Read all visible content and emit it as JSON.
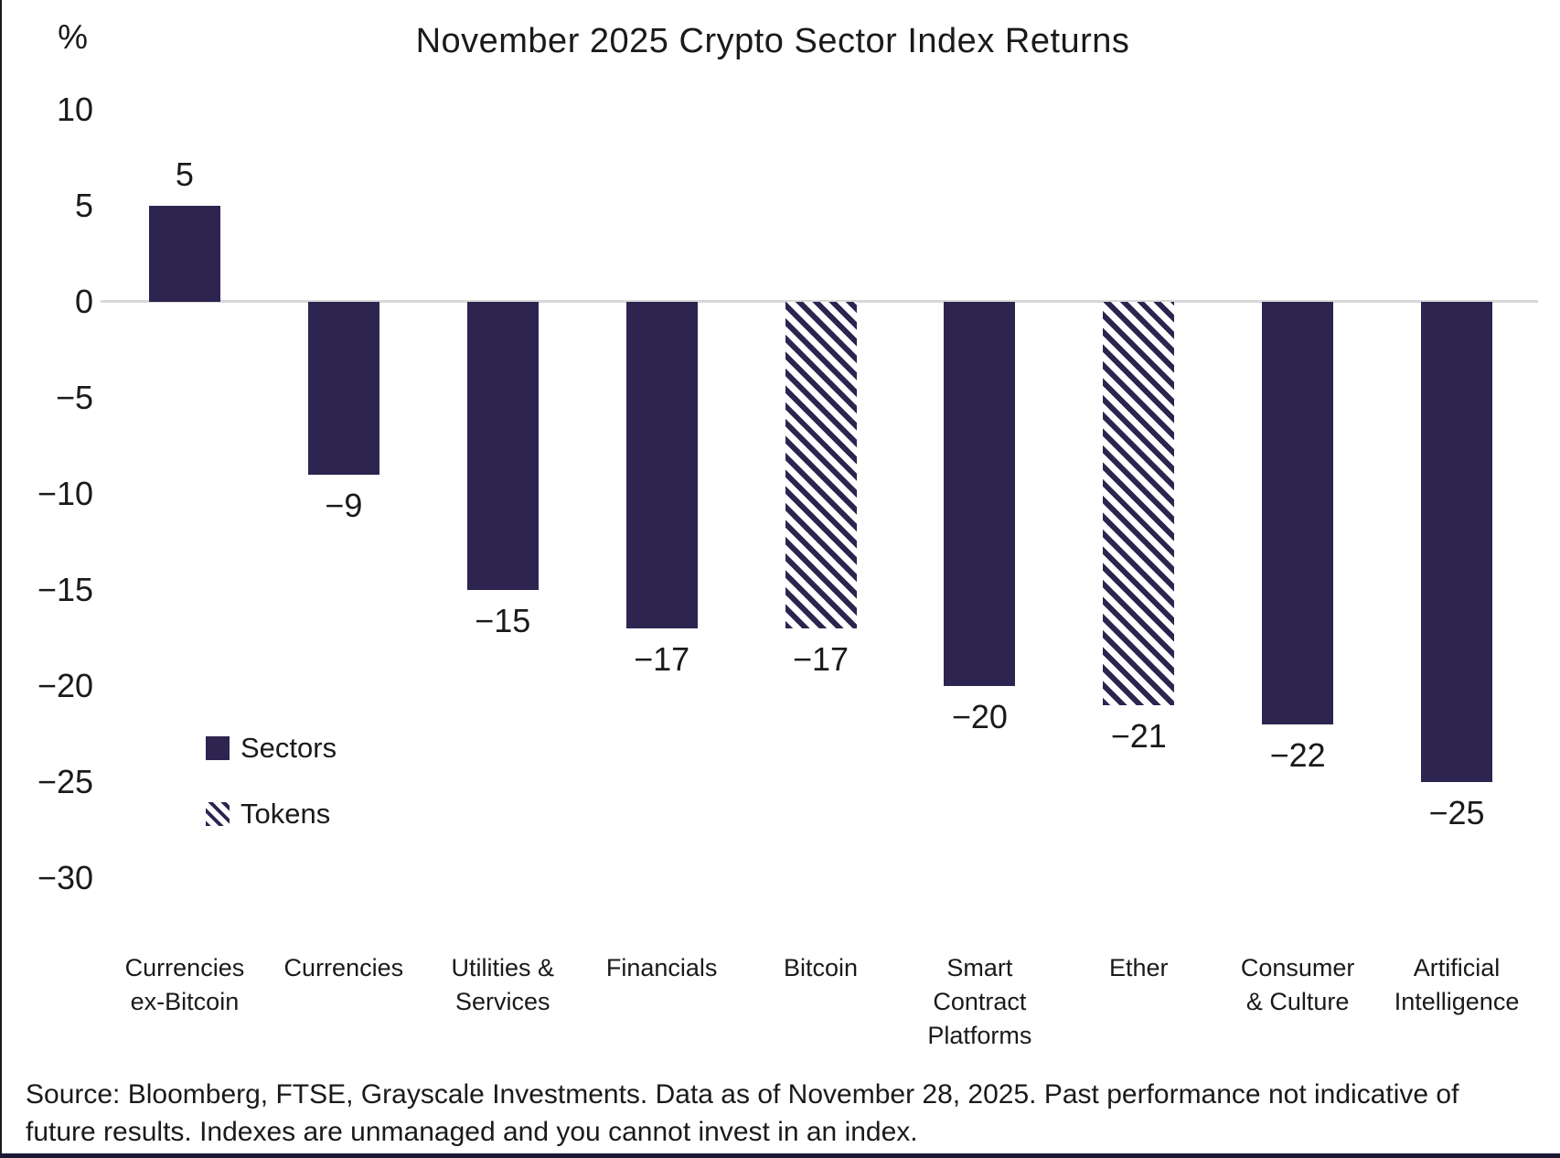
{
  "page": {
    "source_note": "Source: Bloomberg, FTSE, Grayscale Investments. Data as of November 28, 2025. Past performance not indicative of future results. Indexes are unmanaged and you cannot invest in an index."
  },
  "chart_data": {
    "type": "bar",
    "title": "November 2025 Crypto Sector Index Returns",
    "unit_label": "%",
    "categories": [
      "Currencies ex-Bitcoin",
      "Currencies",
      "Utilities & Services",
      "Financials",
      "Bitcoin",
      "Smart Contract Platforms",
      "Ether",
      "Consumer & Culture",
      "Artificial Intelligence"
    ],
    "category_lines": [
      [
        "Currencies",
        "ex-Bitcoin"
      ],
      [
        "Currencies"
      ],
      [
        "Utilities &",
        "Services"
      ],
      [
        "Financials"
      ],
      [
        "Bitcoin"
      ],
      [
        "Smart",
        "Contract",
        "Platforms"
      ],
      [
        "Ether"
      ],
      [
        "Consumer",
        "& Culture"
      ],
      [
        "Artificial",
        "Intelligence"
      ]
    ],
    "values": [
      5,
      -9,
      -15,
      -17,
      -17,
      -20,
      -21,
      -22,
      -25
    ],
    "value_labels": [
      "5",
      "−9",
      "−15",
      "−17",
      "−17",
      "−20",
      "−21",
      "−22",
      "−25"
    ],
    "bar_styles": [
      "solid",
      "solid",
      "solid",
      "solid",
      "hatched",
      "solid",
      "hatched",
      "solid",
      "solid"
    ],
    "y_ticks": [
      10,
      5,
      0,
      -5,
      -10,
      -15,
      -20,
      -25,
      -30
    ],
    "y_tick_labels": [
      "10",
      "5",
      "0",
      "−5",
      "−10",
      "−15",
      "−20",
      "−25",
      "−30"
    ],
    "ylim": [
      -30,
      10
    ],
    "grid": "zero-line-only",
    "legend_position": "inside-left",
    "legend": [
      {
        "label": "Sectors",
        "swatch": "solid"
      },
      {
        "label": "Tokens",
        "swatch": "hatched"
      }
    ],
    "colors": {
      "bar": "#2E2450",
      "hatch_bg": "#FFFFFF",
      "zero_line": "#D8D8D8",
      "text": "#1A1A1A",
      "footer_strip": "#1B1733",
      "left_border": "#1A1A1A"
    }
  }
}
